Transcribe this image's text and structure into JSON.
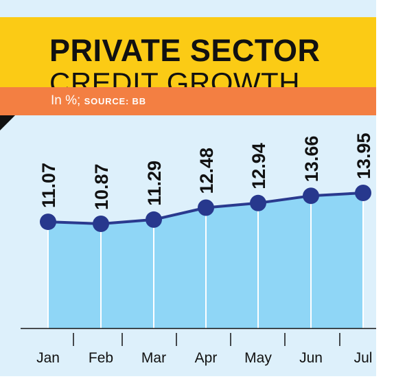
{
  "header": {
    "title_line1": "PRIVATE SECTOR",
    "title_line2": "CREDIT GROWTH",
    "subtitle_unit": "In %;",
    "subtitle_source": "SOURCE: BB"
  },
  "colors": {
    "title_band": "#fbcb15",
    "subtitle_band": "#f37f42",
    "panel_background": "#ddf0fb",
    "area_fill": "#8fd6f6",
    "line": "#2a3a8e",
    "marker": "#27388d"
  },
  "chart_data": {
    "type": "area",
    "categories": [
      "Jan",
      "Feb",
      "Mar",
      "Apr",
      "May",
      "Jun",
      "Jul"
    ],
    "values": [
      11.07,
      10.87,
      11.29,
      12.48,
      12.94,
      13.66,
      13.95
    ],
    "value_labels": [
      "11.07",
      "10.87",
      "11.29",
      "12.48",
      "12.94",
      "13.66",
      "13.95"
    ],
    "title": "PRIVATE SECTOR CREDIT GROWTH",
    "ylabel": "In %",
    "xlabel": "",
    "grid": false
  }
}
